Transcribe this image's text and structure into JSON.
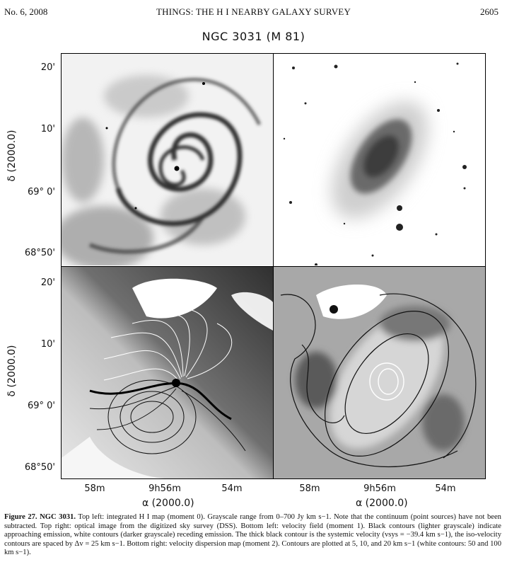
{
  "header": {
    "left": "No. 6, 2008",
    "center": "THINGS: THE H I NEARBY GALAXY SURVEY",
    "right": "2605"
  },
  "figure": {
    "title": "NGC 3031 (M 81)",
    "y_ticks_top": [
      "20'",
      "10'",
      "69° 0'",
      "68°50'"
    ],
    "y_ticks_bottom": [
      "20'",
      "10'",
      "69° 0'",
      "68°50'"
    ],
    "y_label": "δ (2000.0)",
    "x_ticks_left": [
      "58m",
      "9h56m",
      "54m"
    ],
    "x_ticks_right": [
      "58m",
      "9h56m",
      "54m"
    ],
    "x_label": "α (2000.0)",
    "panels": [
      "integrated H I map (moment 0)",
      "optical image DSS",
      "velocity field (moment 1)",
      "velocity dispersion map (moment 2)"
    ]
  },
  "caption": {
    "label": "Figure 27.",
    "object": "NGC 3031.",
    "text": "Top left: integrated H I map (moment 0). Grayscale range from 0–700 Jy km s−1. Note that the continuum (point sources) have not been subtracted. Top right: optical image from the digitized sky survey (DSS). Bottom left: velocity field (moment 1). Black contours (lighter grayscale) indicate approaching emission, white contours (darker grayscale) receding emission. The thick black contour is the systemic velocity (vsys = −39.4 km s−1), the iso-velocity contours are spaced by Δv = 25 km s−1. Bottom right: velocity dispersion map (moment 2). Contours are plotted at 5, 10, and 20 km s−1 (white contours: 50 and 100 km s−1)."
  }
}
